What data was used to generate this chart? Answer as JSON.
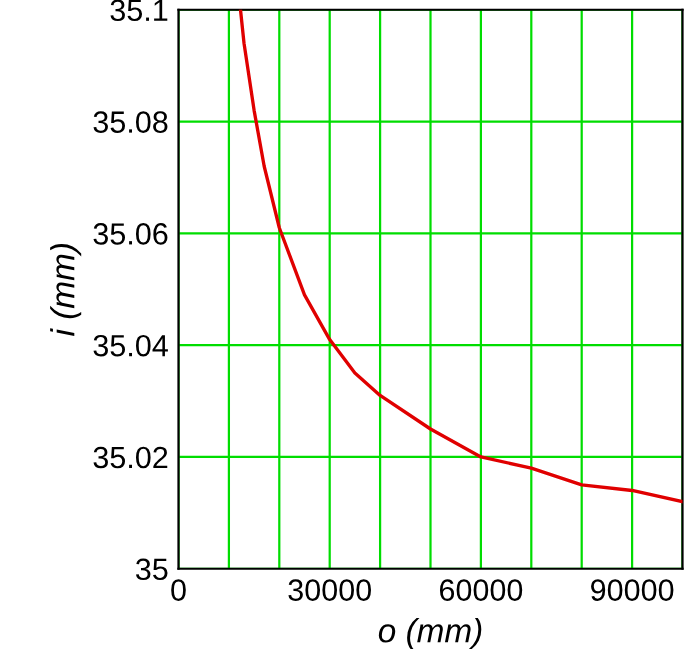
{
  "chart_data": {
    "type": "line",
    "xlabel": "o (mm)",
    "ylabel": "i (mm)",
    "x": [
      12300,
      13000,
      15000,
      17000,
      20000,
      25000,
      30000,
      35000,
      40000,
      50000,
      60000,
      70000,
      80000,
      90000,
      100000
    ],
    "series": [
      {
        "color": "#e00000",
        "values": [
          35.1,
          35.094,
          35.082,
          35.072,
          35.061,
          35.049,
          35.041,
          35.035,
          35.031,
          35.025,
          35.02,
          35.018,
          35.015,
          35.014,
          35.012
        ]
      }
    ],
    "xlim": [
      0,
      100000
    ],
    "ylim": [
      35,
      35.1
    ],
    "xticks": [
      0,
      {
        "value": 10000,
        "label": null
      },
      {
        "value": 20000,
        "label": null
      },
      30000,
      {
        "value": 40000,
        "label": null
      },
      {
        "value": 50000,
        "label": null
      },
      60000,
      {
        "value": 70000,
        "label": null
      },
      {
        "value": 80000,
        "label": null
      },
      90000,
      {
        "value": 100000,
        "label": null
      }
    ],
    "yticks": [
      35,
      35.02,
      35.04,
      35.06,
      35.08,
      35.1
    ],
    "grid": true,
    "marker": "none",
    "line_style": "solid"
  }
}
